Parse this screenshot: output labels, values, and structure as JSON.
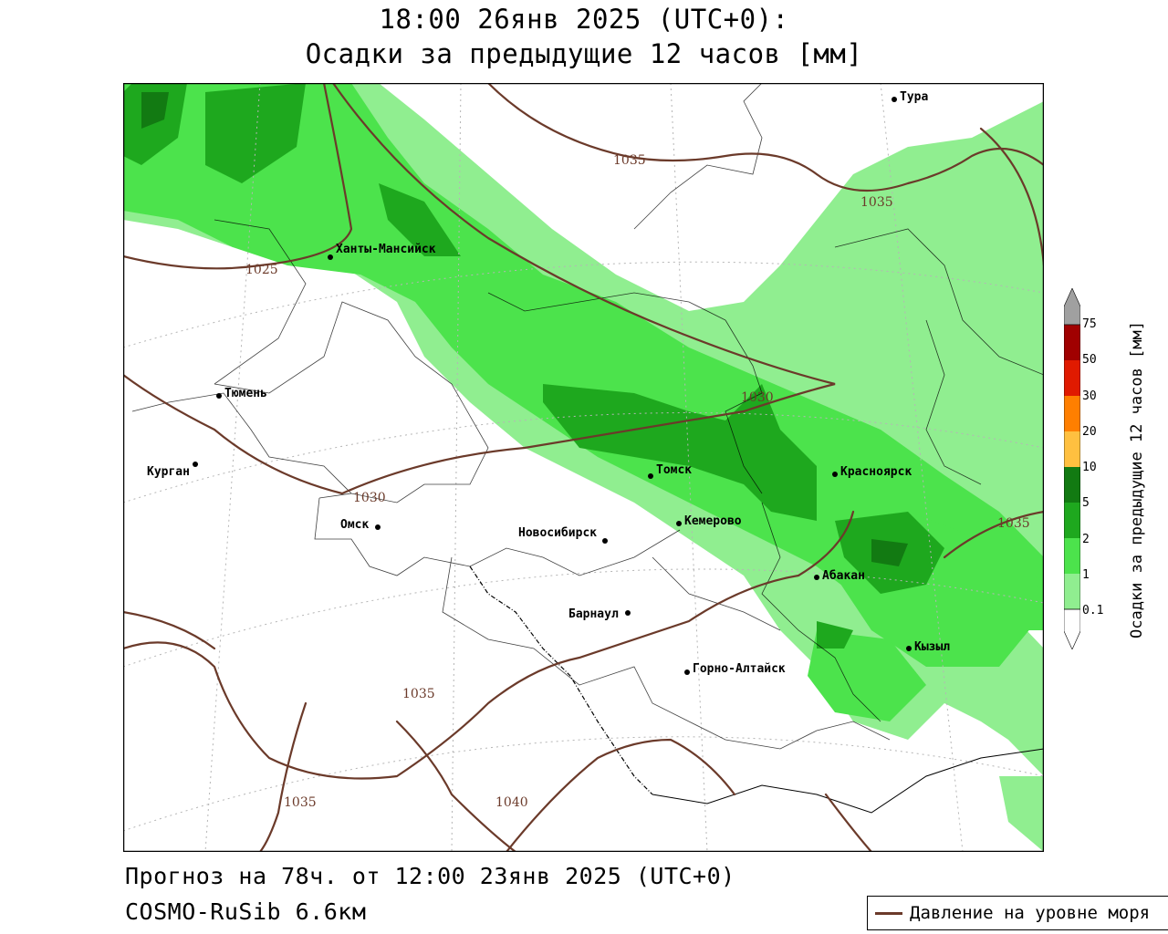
{
  "title_line1": "18:00 26янв 2025 (UTC+0):",
  "title_line2": "Осадки за предыдущие 12 часов [мм]",
  "footer_line1": "Прогноз на 78ч. от 12:00 23янв 2025 (UTC+0)",
  "footer_line2": "COSMO-RuSib 6.6км",
  "legend_label": "Давление на уровне моря",
  "scale": {
    "title": "Осадки за предыдущие 12 часов [мм]",
    "levels": [
      "0.1",
      "1",
      "2",
      "5",
      "10",
      "20",
      "30",
      "50",
      "75"
    ],
    "colors": [
      "#ffffff",
      "#90ee90",
      "#4ce34c",
      "#1ea81e",
      "#127a12",
      "#ffc040",
      "#ff7f00",
      "#e01a00",
      "#a00000",
      "#a0a0a0"
    ]
  },
  "cities": [
    {
      "name": "Тура"
    },
    {
      "name": "Ханты-Мансийск"
    },
    {
      "name": "Тюмень"
    },
    {
      "name": "Курган"
    },
    {
      "name": "Омск"
    },
    {
      "name": "Новосибирск"
    },
    {
      "name": "Томск"
    },
    {
      "name": "Кемерово"
    },
    {
      "name": "Красноярск"
    },
    {
      "name": "Абакан"
    },
    {
      "name": "Барнаул"
    },
    {
      "name": "Горно-Алтайск"
    },
    {
      "name": "Кызыл"
    }
  ],
  "isobars": [
    "1035",
    "1025",
    "1035",
    "1030",
    "1030",
    "1035",
    "1035",
    "1035",
    "1040"
  ],
  "isobar_color": "#6b3a2a"
}
